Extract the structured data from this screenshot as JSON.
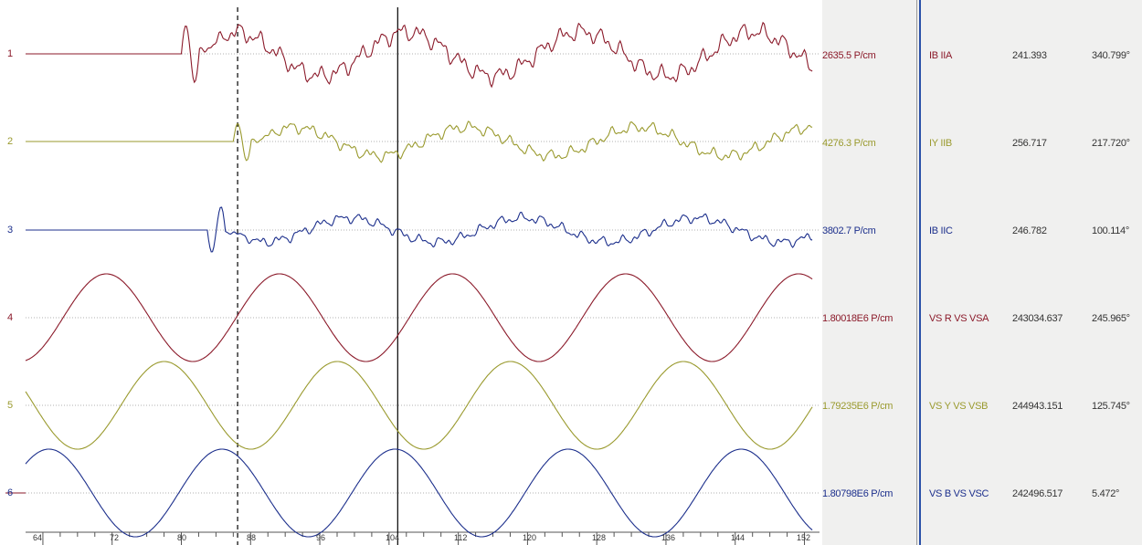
{
  "colors": {
    "red": "#8b1a2a",
    "olive": "#9a9a2e",
    "blue": "#1c2f8c",
    "grid": "#b0b0b0",
    "cursor": "#000000",
    "panel_bg": "#f0f0ef",
    "separator": "#2a50a8"
  },
  "axis": {
    "ticks": [
      "64",
      "72",
      "80",
      "88",
      "96",
      "104",
      "112",
      "120",
      "128",
      "136",
      "144",
      "152"
    ]
  },
  "channels": [
    {
      "num": "1",
      "scale": "2635.5 P/cm",
      "name": "IB IIA",
      "magnitude": "241.393",
      "angle": "340.799°",
      "color": "red"
    },
    {
      "num": "2",
      "scale": "4276.3 P/cm",
      "name": "IY IIB",
      "magnitude": "256.717",
      "angle": "217.720°",
      "color": "olive"
    },
    {
      "num": "3",
      "scale": "3802.7 P/cm",
      "name": "IB IIC",
      "magnitude": "246.782",
      "angle": "100.114°",
      "color": "blue"
    },
    {
      "num": "4",
      "scale": "1.80018E6 P/cm",
      "name": "VS R VS VSA",
      "magnitude": "243034.637",
      "angle": "245.965°",
      "color": "red"
    },
    {
      "num": "5",
      "scale": "1.79235E6 P/cm",
      "name": "VS Y VS VSB",
      "magnitude": "244943.151",
      "angle": "125.745°",
      "color": "olive"
    },
    {
      "num": "6",
      "scale": "1.80798E6 P/cm",
      "name": "VS B VS VSC",
      "magnitude": "242496.517",
      "angle": "5.472°",
      "color": "blue"
    }
  ],
  "chart_data": {
    "type": "line",
    "x_range": [
      62,
      153
    ],
    "fault_start_x": 80,
    "dashed_cursor_x": 86.5,
    "solid_cursor_x": 105,
    "cycle_length": 20,
    "series": [
      {
        "name": "IB IIA",
        "kind": "current",
        "phase_deg": 340.8
      },
      {
        "name": "IY IIB",
        "kind": "current",
        "phase_deg": 217.7
      },
      {
        "name": "IB IIC",
        "kind": "current",
        "phase_deg": 100.1
      },
      {
        "name": "VS R VS VSA",
        "kind": "voltage",
        "phase_deg": 246.0
      },
      {
        "name": "VS Y VS VSB",
        "kind": "voltage",
        "phase_deg": 125.7
      },
      {
        "name": "VS B VS VSC",
        "kind": "voltage",
        "phase_deg": 5.5
      }
    ]
  }
}
